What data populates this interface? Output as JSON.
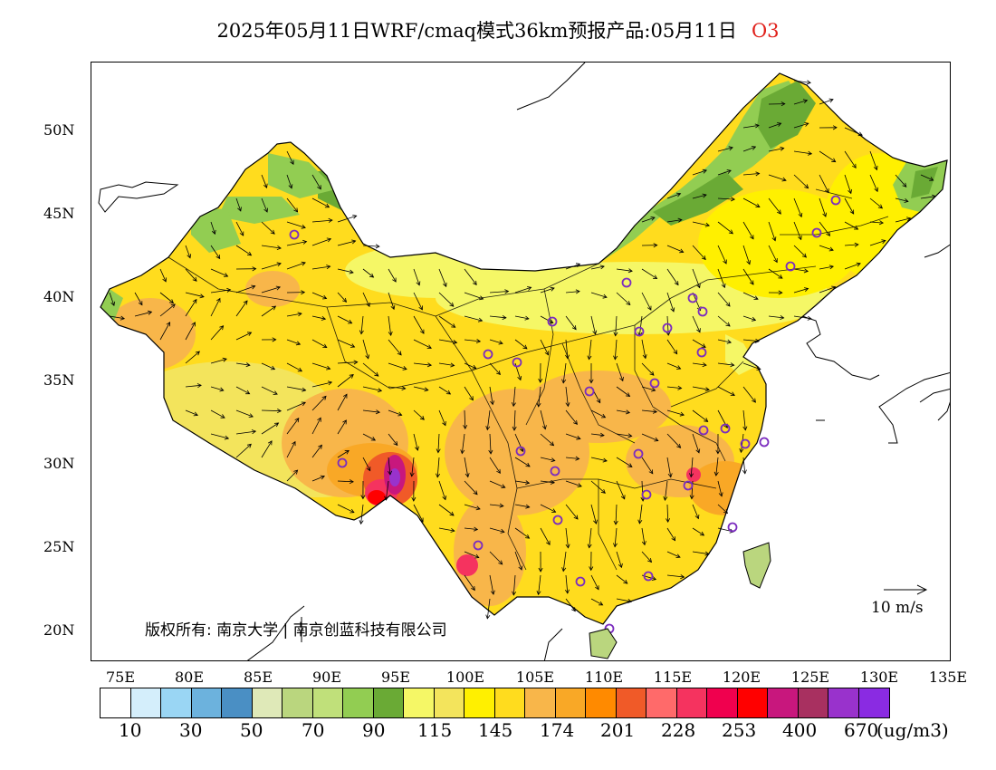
{
  "title": {
    "main": "2025年05月11日WRF/cmaq模式36km预报产品:05月11日",
    "species": "O3"
  },
  "map": {
    "lat_labels": [
      "50N",
      "45N",
      "40N",
      "35N",
      "30N",
      "25N",
      "20N"
    ],
    "lon_labels": [
      "75E",
      "80E",
      "85E",
      "90E",
      "95E",
      "100E",
      "105E",
      "110E",
      "115E",
      "120E",
      "125E",
      "130E",
      "135E"
    ],
    "copyright": "版权所有: 南京大学 | 南京创蓝科技有限公司",
    "vector_label": "10 m/s"
  },
  "legend": {
    "colors": [
      "#ffffff",
      "#d4eefb",
      "#9ad6f4",
      "#6cb2dd",
      "#4a8fc4",
      "#dfe9b8",
      "#bad67e",
      "#c0e07a",
      "#92cd52",
      "#6aaa35",
      "#f5f766",
      "#f3e45c",
      "#fff000",
      "#ffdc1e",
      "#f8b64a",
      "#f9a826",
      "#ff8a00",
      "#f05a28",
      "#ff6a6a",
      "#f5335f",
      "#f0004e",
      "#ff0000",
      "#c8177d",
      "#a83060",
      "#9932cc",
      "#8a2be2"
    ],
    "labels": [
      "10",
      "30",
      "50",
      "70",
      "90",
      "115",
      "145",
      "174",
      "201",
      "228",
      "253",
      "400",
      "670"
    ],
    "unit": "(ug/m3)"
  }
}
